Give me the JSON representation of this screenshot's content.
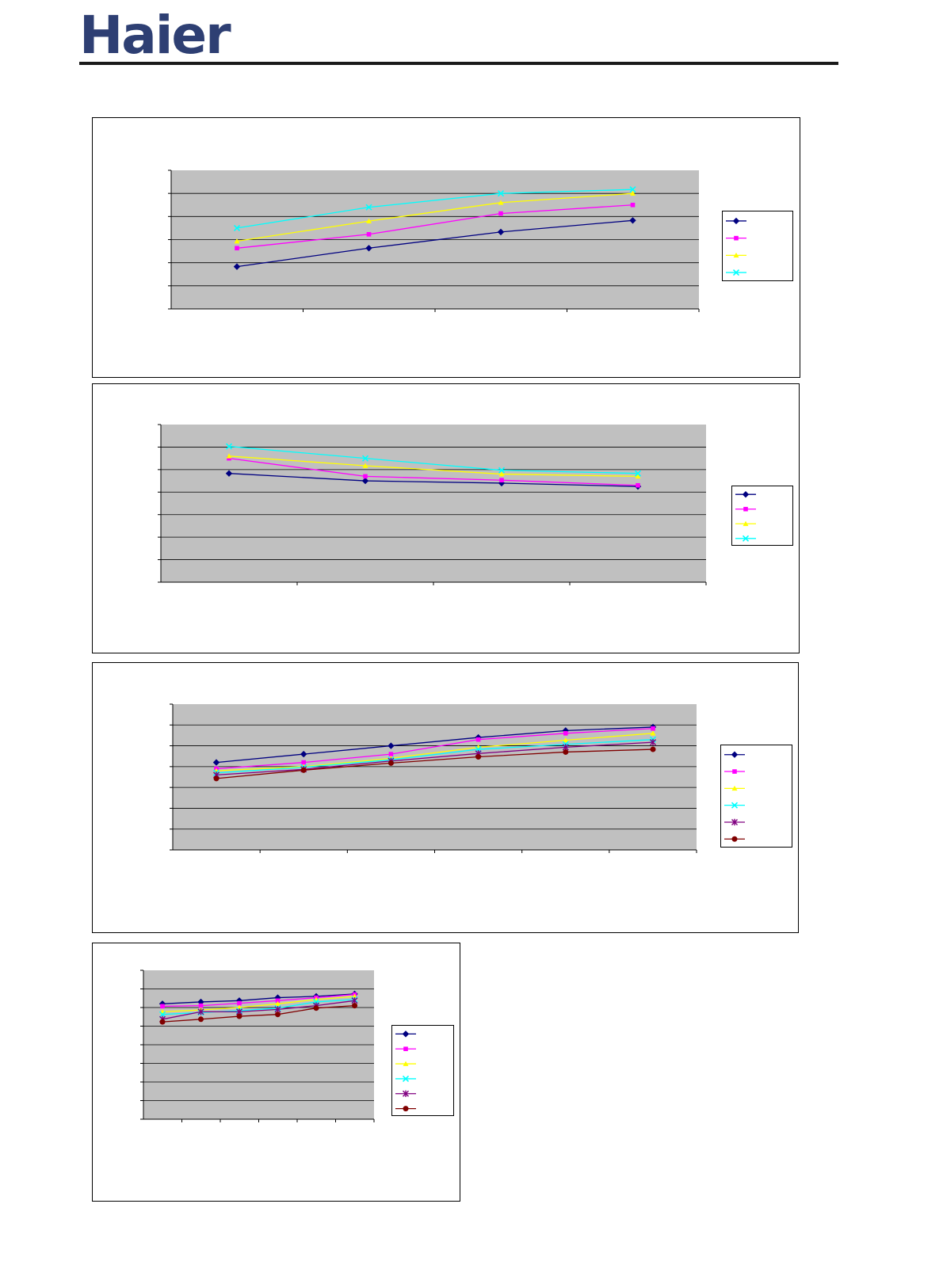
{
  "header": {
    "logo_text": "Haier",
    "logo_color": "#2e3f73"
  },
  "colors": {
    "plot_background": "#c0c0c0",
    "gridline": "#000000"
  },
  "chart_data": [
    {
      "type": "line",
      "categories": [
        "",
        "",
        "",
        ""
      ],
      "ylim": [
        0,
        6
      ],
      "grid": true,
      "legend_position": "right",
      "series": [
        {
          "color": "#000080",
          "marker": "diamond",
          "values": [
            1.83,
            2.63,
            3.33,
            3.83
          ]
        },
        {
          "color": "#ff00ff",
          "marker": "square",
          "values": [
            2.63,
            3.23,
            4.13,
            4.5
          ]
        },
        {
          "color": "#ffff00",
          "marker": "triangle",
          "values": [
            2.93,
            3.8,
            4.6,
            5.0
          ]
        },
        {
          "color": "#00ffff",
          "marker": "x",
          "values": [
            3.5,
            4.4,
            5.0,
            5.17
          ]
        }
      ]
    },
    {
      "type": "line",
      "categories": [
        "",
        "",
        "",
        ""
      ],
      "ylim": [
        0,
        7
      ],
      "grid": true,
      "legend_position": "right",
      "series": [
        {
          "color": "#000080",
          "marker": "diamond",
          "values": [
            4.83,
            4.5,
            4.4,
            4.25
          ]
        },
        {
          "color": "#ff00ff",
          "marker": "square",
          "values": [
            5.5,
            4.7,
            4.53,
            4.3
          ]
        },
        {
          "color": "#ffff00",
          "marker": "triangle",
          "values": [
            5.6,
            5.17,
            4.8,
            4.7
          ]
        },
        {
          "color": "#00ffff",
          "marker": "x",
          "values": [
            6.03,
            5.5,
            4.97,
            4.83
          ]
        }
      ]
    },
    {
      "type": "line",
      "categories": [
        "",
        "",
        "",
        "",
        "",
        ""
      ],
      "ylim": [
        0,
        7
      ],
      "grid": true,
      "legend_position": "right",
      "series": [
        {
          "color": "#000080",
          "marker": "diamond",
          "values": [
            4.2,
            4.6,
            5.0,
            5.4,
            5.73,
            5.9
          ]
        },
        {
          "color": "#ff00ff",
          "marker": "square",
          "values": [
            3.9,
            4.2,
            4.6,
            5.3,
            5.6,
            5.83
          ]
        },
        {
          "color": "#ffff00",
          "marker": "triangle",
          "values": [
            3.8,
            4.0,
            4.4,
            4.93,
            5.27,
            5.6
          ]
        },
        {
          "color": "#00ffff",
          "marker": "x",
          "values": [
            3.7,
            3.97,
            4.33,
            4.83,
            5.07,
            5.3
          ]
        },
        {
          "color": "#800080",
          "marker": "star",
          "values": [
            3.6,
            3.87,
            4.27,
            4.63,
            4.93,
            5.17
          ]
        },
        {
          "color": "#800000",
          "marker": "circle",
          "values": [
            3.43,
            3.83,
            4.17,
            4.47,
            4.7,
            4.83
          ]
        }
      ]
    },
    {
      "type": "line",
      "categories": [
        "",
        "",
        "",
        "",
        "",
        ""
      ],
      "ylim": [
        0,
        8
      ],
      "grid": true,
      "legend_position": "right",
      "series": [
        {
          "color": "#000080",
          "marker": "diamond",
          "values": [
            6.2,
            6.3,
            6.37,
            6.53,
            6.6,
            6.73
          ]
        },
        {
          "color": "#ff00ff",
          "marker": "square",
          "values": [
            6.07,
            6.1,
            6.23,
            6.37,
            6.53,
            6.7
          ]
        },
        {
          "color": "#ffff00",
          "marker": "triangle",
          "values": [
            5.77,
            5.87,
            6.0,
            6.2,
            6.43,
            6.6
          ]
        },
        {
          "color": "#00ffff",
          "marker": "x",
          "values": [
            5.63,
            5.73,
            5.83,
            5.97,
            6.3,
            6.43
          ]
        },
        {
          "color": "#800080",
          "marker": "star",
          "values": [
            5.37,
            5.77,
            5.77,
            5.9,
            6.1,
            6.37
          ]
        },
        {
          "color": "#800000",
          "marker": "circle",
          "values": [
            5.23,
            5.37,
            5.53,
            5.63,
            5.97,
            6.1
          ]
        }
      ]
    }
  ]
}
